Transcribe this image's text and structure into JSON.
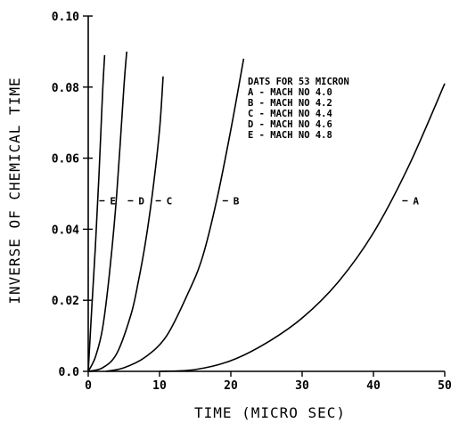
{
  "chart_data": {
    "type": "line",
    "xlabel": "TIME (MICRO SEC)",
    "ylabel": "INVERSE OF CHEMICAL TIME",
    "xlim": [
      0,
      50
    ],
    "ylim": [
      0,
      0.1
    ],
    "x_ticks": [
      "0",
      "10",
      "20",
      "30",
      "40",
      "50"
    ],
    "y_ticks": [
      "0.0",
      "0.02",
      "0.04",
      "0.06",
      "0.08",
      "0.10"
    ],
    "grid": false,
    "legend_title": "DATS FOR 53 MICRON",
    "legend_entries": [
      "A - MACH NO 4.0",
      "B - MACH NO 4.2",
      "C - MACH NO 4.4",
      "D - MACH NO 4.6",
      "E - MACH NO 4.8"
    ],
    "series": [
      {
        "name": "E",
        "x": [
          0,
          0.5,
          1.0,
          1.5,
          2.0,
          2.3
        ],
        "y": [
          0.0,
          0.018,
          0.035,
          0.055,
          0.078,
          0.089
        ]
      },
      {
        "name": "D",
        "x": [
          0,
          1.0,
          2.0,
          3.0,
          4.0,
          5.0,
          5.4
        ],
        "y": [
          0.0,
          0.004,
          0.012,
          0.028,
          0.05,
          0.08,
          0.09
        ]
      },
      {
        "name": "C",
        "x": [
          0,
          2.0,
          4.0,
          6.0,
          7.0,
          8.0,
          9.0,
          10.0,
          10.5
        ],
        "y": [
          0.0,
          0.001,
          0.005,
          0.016,
          0.025,
          0.036,
          0.05,
          0.068,
          0.083
        ]
      },
      {
        "name": "B",
        "x": [
          2.5,
          5,
          8,
          11,
          14,
          16,
          18,
          20,
          21.8
        ],
        "y": [
          0.0,
          0.001,
          0.004,
          0.01,
          0.022,
          0.032,
          0.048,
          0.068,
          0.088
        ]
      },
      {
        "name": "A",
        "x": [
          10,
          15,
          20,
          25,
          30,
          35,
          40,
          45,
          50
        ],
        "y": [
          0.0,
          0.0005,
          0.003,
          0.008,
          0.015,
          0.025,
          0.039,
          0.058,
          0.081
        ]
      }
    ],
    "curve_labels": [
      {
        "text": "E",
        "x": 2.3,
        "y": 0.048
      },
      {
        "text": "D",
        "x": 6.3,
        "y": 0.048
      },
      {
        "text": "C",
        "x": 10.2,
        "y": 0.048
      },
      {
        "text": "B",
        "x": 19.6,
        "y": 0.048
      },
      {
        "text": "A",
        "x": 44.8,
        "y": 0.048
      }
    ]
  }
}
